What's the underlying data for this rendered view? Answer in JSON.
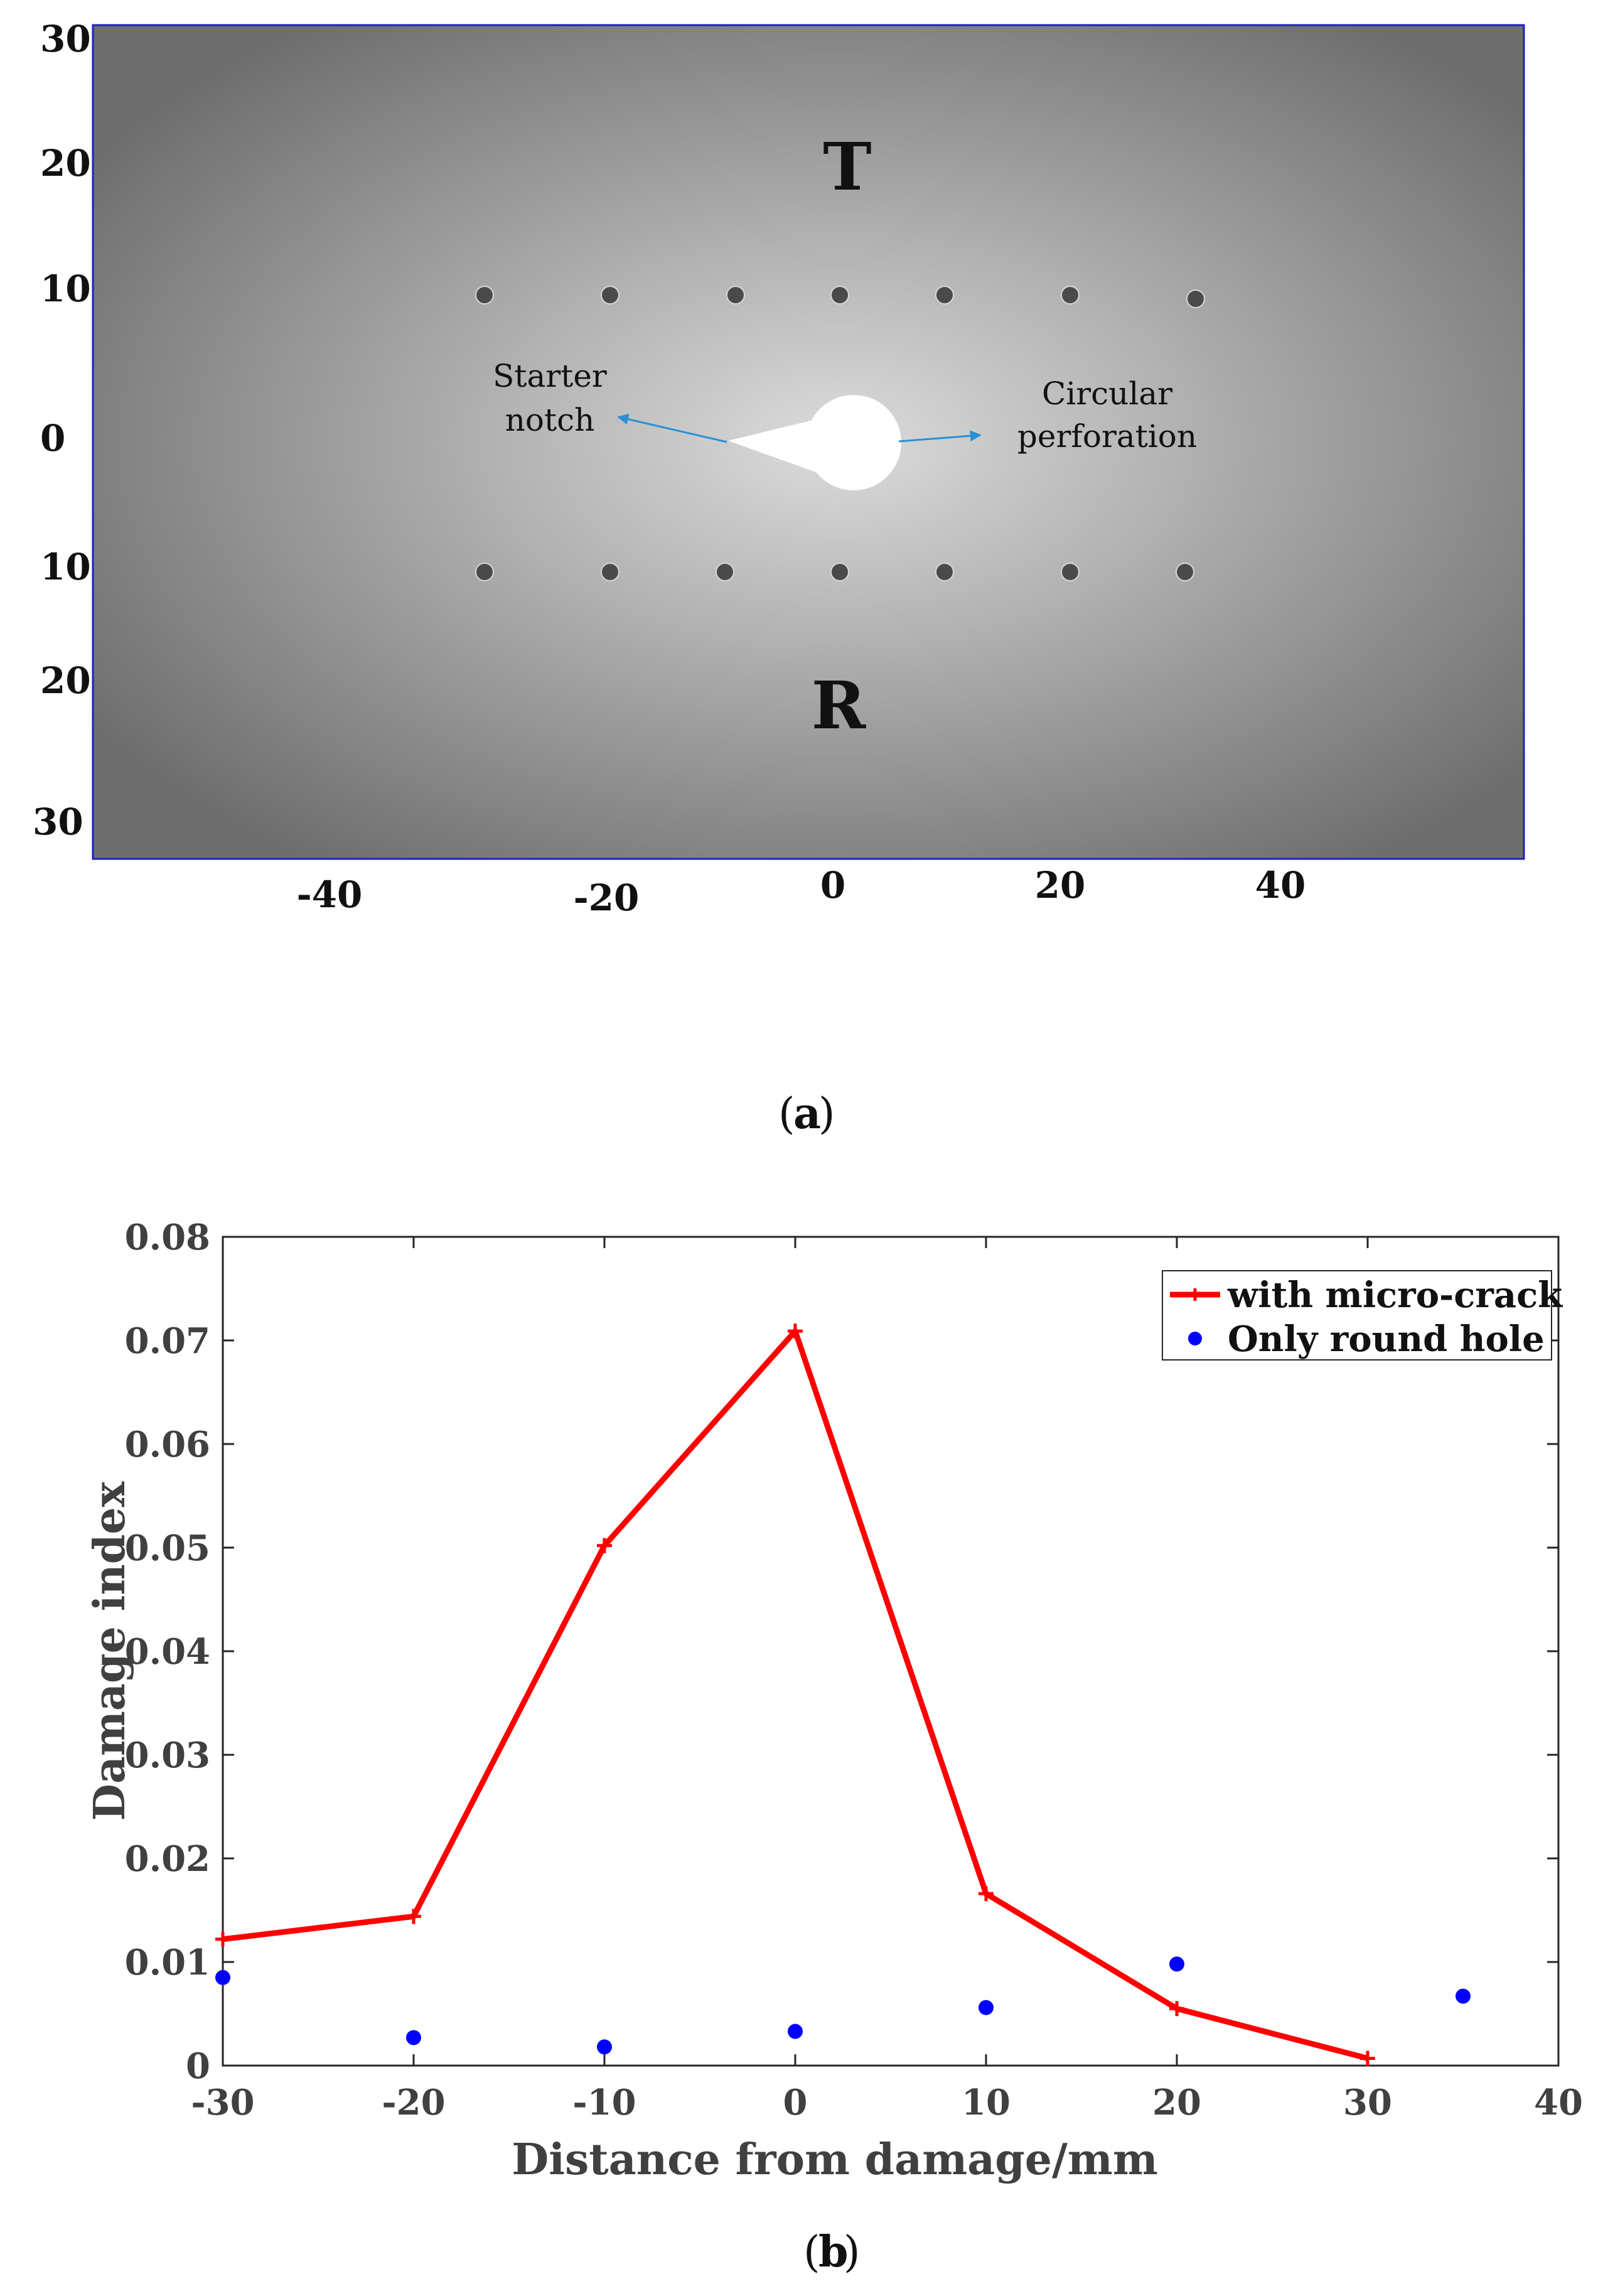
{
  "panel_a": {
    "caption_letter": "a",
    "label_top": "T",
    "label_bottom": "R",
    "notch_label_line1": "Starter",
    "notch_label_line2": "notch",
    "perforation_label_line1": "Circular",
    "perforation_label_line2": "perforation",
    "y_ticks": [
      "30",
      "20",
      "10",
      "0",
      "10",
      "20",
      "30"
    ],
    "x_ticks": [
      "-40",
      "-20",
      "0",
      "20",
      "40"
    ],
    "colors": {
      "plate_center": "#dcdcdc",
      "plate_edge": "#6e6e6e",
      "border": "#1f1fbf",
      "arrow": "#2a8fd6",
      "sensor": "#4a4a4a"
    }
  },
  "panel_b": {
    "caption_letter": "b"
  },
  "chart_data": {
    "type": "line",
    "title": "",
    "xlabel": "Distance from damage/mm",
    "ylabel": "Damage index",
    "xlim": [
      -30,
      40
    ],
    "ylim": [
      0,
      0.08
    ],
    "x_ticks": [
      -30,
      -20,
      -10,
      0,
      10,
      20,
      30,
      40
    ],
    "y_ticks": [
      0,
      0.01,
      0.02,
      0.03,
      0.04,
      0.05,
      0.06,
      0.07,
      0.08
    ],
    "x_tick_labels": [
      "-30",
      "-20",
      "-10",
      "0",
      "10",
      "20",
      "30",
      "40"
    ],
    "y_tick_labels": [
      "0",
      "0.01",
      "0.02",
      "0.03",
      "0.04",
      "0.05",
      "0.06",
      "0.07",
      "0.08"
    ],
    "legend_position": "top-right",
    "grid": false,
    "series": [
      {
        "name": "with micro-crack",
        "style": "line-plus",
        "color": "#ff0000",
        "x": [
          -30,
          -20,
          -10,
          0,
          10,
          20,
          30
        ],
        "values": [
          0.0122,
          0.0144,
          0.0502,
          0.0709,
          0.0166,
          0.0055,
          0.0007
        ]
      },
      {
        "name": "Only round hole",
        "style": "markers",
        "color": "#0000ff",
        "x": [
          -30,
          -20,
          -10,
          0,
          10,
          20,
          35
        ],
        "values": [
          0.0085,
          0.0027,
          0.0018,
          0.0033,
          0.0056,
          0.0098,
          0.0067
        ]
      }
    ]
  }
}
